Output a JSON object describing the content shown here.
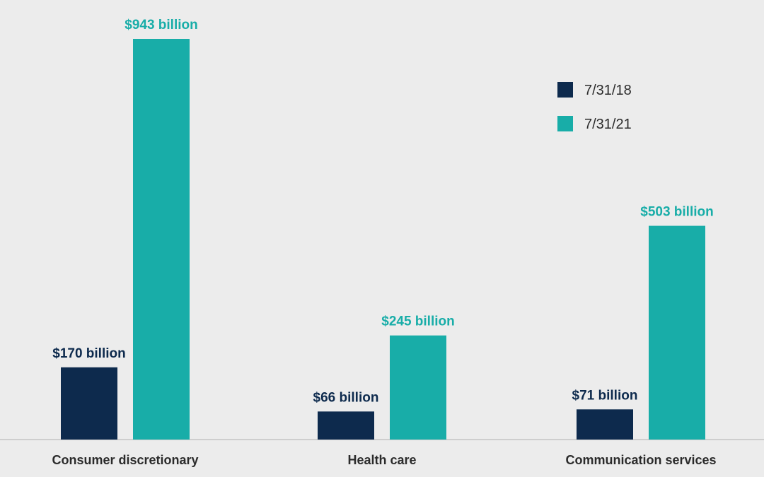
{
  "chart_data": {
    "type": "bar",
    "title": "",
    "xlabel": "",
    "ylabel": "",
    "categories": [
      "Consumer discretionary",
      "Health care",
      "Communication services"
    ],
    "series": [
      {
        "name": "7/31/18",
        "color": "#0d2a4d",
        "values": [
          170,
          66,
          71
        ],
        "labels": [
          "$170 billion",
          "$66 billion",
          "$71 billion"
        ]
      },
      {
        "name": "7/31/21",
        "color": "#18ada8",
        "values": [
          943,
          245,
          503
        ],
        "labels": [
          "$943 billion",
          "$245 billion",
          "$503 billion"
        ]
      }
    ],
    "unit": "billion USD",
    "ylim": [
      0,
      1000
    ],
    "grid": false,
    "legend_position": "top-right",
    "y_axis_visible": false
  },
  "colors": {
    "background": "#ececec",
    "baseline": "#c4c4c4"
  }
}
